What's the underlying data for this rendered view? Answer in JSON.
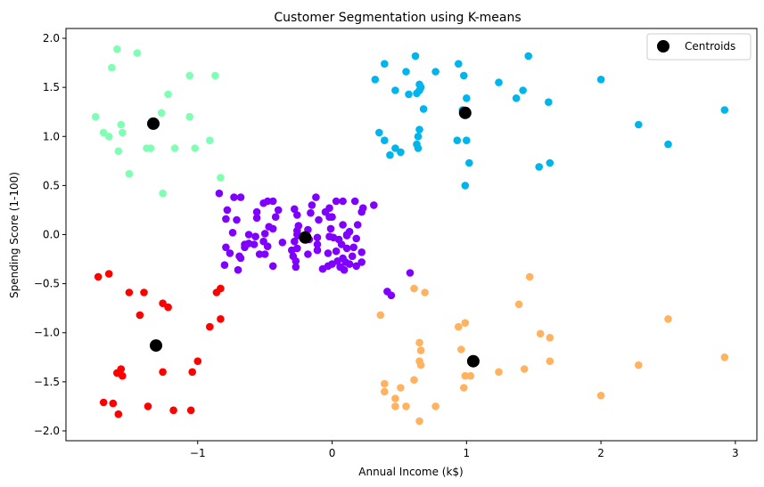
{
  "chart_data": {
    "type": "scatter",
    "title": "Customer Segmentation using K-means",
    "xlabel": "Annual Income (k$)",
    "ylabel": "Spending Score (1-100)",
    "xlim": [
      -1.98,
      3.16
    ],
    "ylim": [
      -2.1,
      2.1
    ],
    "xticks": [
      -1,
      0,
      1,
      2,
      3
    ],
    "xtick_labels": [
      "−1",
      "0",
      "1",
      "2",
      "3"
    ],
    "yticks": [
      -2.0,
      -1.5,
      -1.0,
      -0.5,
      0.0,
      0.5,
      1.0,
      1.5,
      2.0
    ],
    "ytick_labels": [
      "−2.0",
      "−1.5",
      "−1.0",
      "−0.5",
      "0.0",
      "0.5",
      "1.0",
      "1.5",
      "2.0"
    ],
    "grid": false,
    "legend": {
      "placement": "top-right",
      "entries": [
        "Centroids"
      ]
    },
    "series": [
      {
        "color": "#8000ff",
        "points": [
          [
            -0.84,
            0.42
          ],
          [
            -0.73,
            0.38
          ],
          [
            -0.68,
            0.38
          ],
          [
            -0.78,
            0.25
          ],
          [
            -0.79,
            0.16
          ],
          [
            -0.71,
            0.15
          ],
          [
            -0.74,
            0.02
          ],
          [
            -0.79,
            -0.13
          ],
          [
            -0.8,
            -0.31
          ],
          [
            -0.76,
            -0.19
          ],
          [
            -0.69,
            -0.22
          ],
          [
            -0.65,
            -0.13
          ],
          [
            -0.65,
            -0.1
          ],
          [
            -0.7,
            -0.36
          ],
          [
            -0.62,
            -0.09
          ],
          [
            -0.57,
            -0.02
          ],
          [
            -0.56,
            0.23
          ],
          [
            -0.56,
            0.17
          ],
          [
            -0.51,
            0.32
          ],
          [
            -0.48,
            0.34
          ],
          [
            -0.44,
            0.34
          ],
          [
            -0.47,
            0.08
          ],
          [
            -0.5,
            0.01
          ],
          [
            -0.51,
            -0.07
          ],
          [
            -0.48,
            -0.12
          ],
          [
            -0.44,
            0.06
          ],
          [
            -0.42,
            0.18
          ],
          [
            -0.4,
            0.25
          ],
          [
            -0.37,
            -0.08
          ],
          [
            -0.5,
            -0.2
          ],
          [
            -0.44,
            -0.32
          ],
          [
            -0.58,
            -0.1
          ],
          [
            -0.54,
            -0.2
          ],
          [
            -0.28,
            -0.07
          ],
          [
            -0.26,
            -0.14
          ],
          [
            -0.29,
            -0.22
          ],
          [
            -0.28,
            0.26
          ],
          [
            -0.26,
            0.2
          ],
          [
            -0.25,
            0.09
          ],
          [
            -0.26,
            0.04
          ],
          [
            -0.25,
            -0.01
          ],
          [
            -0.27,
            -0.27
          ],
          [
            -0.27,
            -0.33
          ],
          [
            -0.18,
            0.05
          ],
          [
            -0.17,
            -0.05
          ],
          [
            -0.16,
            0.22
          ],
          [
            -0.15,
            0.3
          ],
          [
            -0.12,
            0.38
          ],
          [
            -0.1,
            0.15
          ],
          [
            -0.11,
            -0.03
          ],
          [
            -0.11,
            -0.16
          ],
          [
            -0.02,
            0.27
          ],
          [
            -0.02,
            0.18
          ],
          [
            -0.01,
            0.06
          ],
          [
            -0.02,
            -0.02
          ],
          [
            0.01,
            -0.03
          ],
          [
            0.05,
            -0.05
          ],
          [
            0.03,
            -0.17
          ],
          [
            0.08,
            0.1
          ],
          [
            0.08,
            0.34
          ],
          [
            0.03,
            0.34
          ],
          [
            0.07,
            -0.1
          ],
          [
            0.11,
            -0.01
          ],
          [
            0.11,
            -0.14
          ],
          [
            0.17,
            0.34
          ],
          [
            0.16,
            -0.13
          ],
          [
            0.18,
            -0.04
          ],
          [
            0.15,
            -0.22
          ],
          [
            0.22,
            0.23
          ],
          [
            0.23,
            0.27
          ],
          [
            0.31,
            0.3
          ],
          [
            0.1,
            -0.28
          ],
          [
            0.0,
            -0.3
          ],
          [
            -0.03,
            -0.32
          ],
          [
            -0.07,
            -0.35
          ],
          [
            0.06,
            -0.33
          ],
          [
            0.09,
            -0.36
          ],
          [
            0.13,
            -0.3
          ],
          [
            0.18,
            -0.32
          ],
          [
            0.22,
            -0.28
          ],
          [
            0.13,
            0.03
          ],
          [
            0.08,
            -0.24
          ],
          [
            0.04,
            -0.27
          ],
          [
            -0.03,
            -0.19
          ],
          [
            0.19,
            0.1
          ],
          [
            0.0,
            0.18
          ],
          [
            -0.05,
            0.23
          ],
          [
            0.11,
            0.0
          ],
          [
            -0.26,
            0.0
          ],
          [
            -0.18,
            -0.2
          ],
          [
            -0.11,
            -0.1
          ],
          [
            0.22,
            -0.18
          ],
          [
            0.41,
            -0.58
          ],
          [
            0.44,
            -0.62
          ],
          [
            0.58,
            -0.39
          ],
          [
            -0.3,
            -0.16
          ],
          [
            -0.62,
            0.0
          ],
          [
            -0.68,
            -0.24
          ]
        ]
      },
      {
        "color": "#00b5eb",
        "points": [
          [
            0.32,
            1.58
          ],
          [
            0.39,
            1.74
          ],
          [
            0.47,
            1.47
          ],
          [
            0.55,
            1.66
          ],
          [
            0.62,
            1.82
          ],
          [
            0.57,
            1.43
          ],
          [
            0.63,
            1.44
          ],
          [
            0.65,
            1.47
          ],
          [
            0.65,
            1.53
          ],
          [
            0.66,
            1.5
          ],
          [
            0.68,
            1.28
          ],
          [
            0.77,
            1.66
          ],
          [
            0.35,
            1.04
          ],
          [
            0.39,
            0.96
          ],
          [
            0.43,
            0.81
          ],
          [
            0.47,
            0.88
          ],
          [
            0.51,
            0.84
          ],
          [
            0.63,
            0.92
          ],
          [
            0.64,
            0.88
          ],
          [
            0.64,
            1.0
          ],
          [
            0.65,
            1.07
          ],
          [
            0.94,
            1.74
          ],
          [
            0.98,
            1.62
          ],
          [
            1.0,
            1.39
          ],
          [
            0.97,
            1.27
          ],
          [
            0.93,
            0.96
          ],
          [
            1.0,
            0.96
          ],
          [
            1.02,
            0.73
          ],
          [
            0.99,
            0.5
          ],
          [
            1.24,
            1.55
          ],
          [
            1.37,
            1.39
          ],
          [
            1.42,
            1.47
          ],
          [
            1.46,
            1.82
          ],
          [
            1.54,
            0.69
          ],
          [
            1.61,
            1.35
          ],
          [
            1.62,
            0.73
          ],
          [
            2.0,
            1.58
          ],
          [
            2.28,
            1.12
          ],
          [
            2.5,
            0.92
          ],
          [
            2.92,
            1.27
          ]
        ]
      },
      {
        "color": "#80ffb4",
        "points": [
          [
            -1.6,
            1.89
          ],
          [
            -1.45,
            1.85
          ],
          [
            -1.64,
            1.7
          ],
          [
            -1.76,
            1.2
          ],
          [
            -1.7,
            1.04
          ],
          [
            -1.66,
            1.0
          ],
          [
            -1.57,
            1.12
          ],
          [
            -1.56,
            1.04
          ],
          [
            -1.59,
            0.85
          ],
          [
            -1.51,
            0.62
          ],
          [
            -1.27,
            1.24
          ],
          [
            -1.22,
            1.43
          ],
          [
            -1.06,
            1.62
          ],
          [
            -0.87,
            1.62
          ],
          [
            -1.06,
            1.2
          ],
          [
            -1.17,
            0.88
          ],
          [
            -1.38,
            0.88
          ],
          [
            -1.35,
            0.88
          ],
          [
            -1.02,
            0.88
          ],
          [
            -0.91,
            0.96
          ],
          [
            -0.83,
            0.58
          ],
          [
            -1.26,
            0.42
          ]
        ]
      },
      {
        "color": "#ff0000",
        "points": [
          [
            -1.74,
            -0.43
          ],
          [
            -1.66,
            -0.4
          ],
          [
            -1.51,
            -0.59
          ],
          [
            -1.4,
            -0.59
          ],
          [
            -1.43,
            -0.82
          ],
          [
            -1.26,
            -0.7
          ],
          [
            -1.22,
            -0.74
          ],
          [
            -0.86,
            -0.59
          ],
          [
            -0.83,
            -0.55
          ],
          [
            -0.83,
            -0.86
          ],
          [
            -0.91,
            -0.94
          ],
          [
            -1.0,
            -1.29
          ],
          [
            -1.04,
            -1.4
          ],
          [
            -1.26,
            -1.4
          ],
          [
            -1.6,
            -1.41
          ],
          [
            -1.57,
            -1.37
          ],
          [
            -1.56,
            -1.44
          ],
          [
            -1.37,
            -1.75
          ],
          [
            -1.7,
            -1.71
          ],
          [
            -1.63,
            -1.72
          ],
          [
            -1.59,
            -1.83
          ],
          [
            -1.18,
            -1.79
          ],
          [
            -1.05,
            -1.79
          ]
        ]
      },
      {
        "color": "#ffb360",
        "points": [
          [
            0.36,
            -0.82
          ],
          [
            0.61,
            -0.55
          ],
          [
            0.69,
            -0.59
          ],
          [
            0.94,
            -0.94
          ],
          [
            0.99,
            -0.9
          ],
          [
            0.96,
            -1.17
          ],
          [
            0.65,
            -1.1
          ],
          [
            0.66,
            -1.18
          ],
          [
            0.65,
            -1.29
          ],
          [
            0.66,
            -1.33
          ],
          [
            0.61,
            -1.48
          ],
          [
            0.39,
            -1.52
          ],
          [
            0.39,
            -1.6
          ],
          [
            0.51,
            -1.56
          ],
          [
            0.47,
            -1.67
          ],
          [
            0.47,
            -1.75
          ],
          [
            0.55,
            -1.75
          ],
          [
            0.65,
            -1.9
          ],
          [
            0.77,
            -1.75
          ],
          [
            0.99,
            -1.44
          ],
          [
            1.03,
            -1.44
          ],
          [
            0.98,
            -1.56
          ],
          [
            1.24,
            -1.4
          ],
          [
            1.39,
            -0.71
          ],
          [
            1.47,
            -0.43
          ],
          [
            1.55,
            -1.01
          ],
          [
            1.62,
            -1.05
          ],
          [
            1.62,
            -1.29
          ],
          [
            1.43,
            -1.37
          ],
          [
            2.0,
            -1.64
          ],
          [
            2.28,
            -1.33
          ],
          [
            2.5,
            -0.86
          ],
          [
            2.92,
            -1.25
          ]
        ]
      }
    ],
    "centroids": {
      "name": "Centroids",
      "color": "#000000",
      "points": [
        [
          -1.33,
          1.13
        ],
        [
          0.99,
          1.24
        ],
        [
          -0.2,
          -0.03
        ],
        [
          -1.31,
          -1.13
        ],
        [
          1.05,
          -1.29
        ]
      ]
    }
  }
}
